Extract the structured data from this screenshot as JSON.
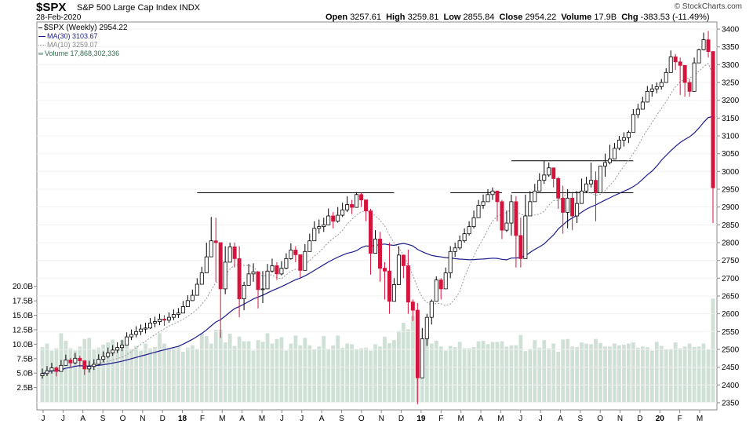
{
  "header": {
    "symbol": "$SPX",
    "name": "S&P 500 Large Cap Index",
    "exchange": "INDX",
    "date": "28-Feb-2020",
    "brand": "© StockCharts.com",
    "open_label": "Open",
    "open": "3257.61",
    "high_label": "High",
    "high": "3259.81",
    "low_label": "Low",
    "low": "2855.84",
    "close_label": "Close",
    "close": "2954.22",
    "volume_label": "Volume",
    "volume": "17.9B",
    "chg_label": "Chg",
    "chg": "-383.53 (-11.49%)"
  },
  "legend": {
    "price": "$SPX (Weekly) 2954.22",
    "ma30": "MA(30) 3103.67",
    "ma10": "MA(10) 3259.07",
    "volume": "Volume 17,868,302,336"
  },
  "colors": {
    "up": "#000000",
    "down": "#d4143c",
    "ma30": "#1c1c8c",
    "ma10": "#999999",
    "volume": "#cfe0d6"
  },
  "chart_data": {
    "type": "candlestick",
    "period": "weekly",
    "x_tick_labels": [
      "J",
      "J",
      "A",
      "S",
      "O",
      "N",
      "D",
      "18",
      "F",
      "M",
      "A",
      "M",
      "J",
      "J",
      "A",
      "S",
      "O",
      "N",
      "D",
      "19",
      "F",
      "M",
      "A",
      "M",
      "J",
      "J",
      "A",
      "S",
      "O",
      "N",
      "D",
      "20",
      "F",
      "M"
    ],
    "y_price_range": [
      2330,
      3420
    ],
    "y_price_ticks": [
      2350,
      2400,
      2450,
      2500,
      2550,
      2600,
      2650,
      2700,
      2750,
      2800,
      2850,
      2900,
      2950,
      3000,
      3050,
      3100,
      3150,
      3200,
      3250,
      3300,
      3350,
      3400
    ],
    "y_volume_range": [
      0,
      22
    ],
    "y_volume_ticks": [
      "2.5B",
      "5.0B",
      "7.5B",
      "10.0B",
      "12.5B",
      "15.0B",
      "17.5B",
      "20.0B"
    ],
    "y_volume_tick_values": [
      2.5,
      5,
      7.5,
      10,
      12.5,
      15,
      17.5,
      20
    ],
    "closes": [
      2432,
      2440,
      2448,
      2438,
      2455,
      2470,
      2462,
      2475,
      2468,
      2445,
      2452,
      2458,
      2472,
      2480,
      2490,
      2498,
      2505,
      2512,
      2535,
      2542,
      2550,
      2557,
      2560,
      2574,
      2578,
      2585,
      2582,
      2590,
      2598,
      2602,
      2620,
      2637,
      2652,
      2683,
      2715,
      2760,
      2805,
      2800,
      2670,
      2745,
      2788,
      2755,
      2642,
      2680,
      2712,
      2718,
      2668,
      2670,
      2720,
      2735,
      2712,
      2728,
      2755,
      2779,
      2766,
      2722,
      2775,
      2805,
      2840,
      2845,
      2850,
      2875,
      2860,
      2877,
      2892,
      2907,
      2899,
      2935,
      2920,
      2889,
      2770,
      2810,
      2728,
      2720,
      2635,
      2682,
      2765,
      2735,
      2633,
      2610,
      2420,
      2530,
      2590,
      2635,
      2695,
      2670,
      2715,
      2775,
      2785,
      2805,
      2825,
      2845,
      2870,
      2905,
      2915,
      2935,
      2945,
      2915,
      2835,
      2855,
      2915,
      2820,
      2755,
      2875,
      2915,
      2945,
      2975,
      2990,
      3010,
      2980,
      2925,
      2885,
      2925,
      2875,
      2910,
      2945,
      2965,
      2975,
      2940,
      3015,
      3025,
      3035,
      3065,
      3088,
      3095,
      3110,
      3160,
      3175,
      3195,
      3225,
      3232,
      3238,
      3250,
      3278,
      3322,
      3308,
      3298,
      3250,
      3225,
      3305,
      3342,
      3370,
      3337,
      2954
    ],
    "ranges": [
      [
        2418,
        2446
      ],
      [
        2425,
        2453
      ],
      [
        2432,
        2462
      ],
      [
        2424,
        2452
      ],
      [
        2440,
        2470
      ],
      [
        2455,
        2485
      ],
      [
        2448,
        2476
      ],
      [
        2458,
        2490
      ],
      [
        2450,
        2482
      ],
      [
        2428,
        2462
      ],
      [
        2435,
        2468
      ],
      [
        2442,
        2472
      ],
      [
        2456,
        2486
      ],
      [
        2464,
        2494
      ],
      [
        2475,
        2505
      ],
      [
        2482,
        2512
      ],
      [
        2490,
        2520
      ],
      [
        2495,
        2526
      ],
      [
        2515,
        2548
      ],
      [
        2526,
        2556
      ],
      [
        2534,
        2565
      ],
      [
        2540,
        2570
      ],
      [
        2545,
        2575
      ],
      [
        2557,
        2588
      ],
      [
        2562,
        2592
      ],
      [
        2568,
        2600
      ],
      [
        2566,
        2596
      ],
      [
        2575,
        2604
      ],
      [
        2582,
        2612
      ],
      [
        2588,
        2616
      ],
      [
        2604,
        2636
      ],
      [
        2620,
        2652
      ],
      [
        2636,
        2668
      ],
      [
        2660,
        2700
      ],
      [
        2694,
        2732
      ],
      [
        2738,
        2800
      ],
      [
        2785,
        2872
      ],
      [
        2690,
        2870
      ],
      [
        2532,
        2800
      ],
      [
        2655,
        2790
      ],
      [
        2760,
        2800
      ],
      [
        2730,
        2800
      ],
      [
        2590,
        2790
      ],
      [
        2610,
        2690
      ],
      [
        2690,
        2740
      ],
      [
        2690,
        2742
      ],
      [
        2615,
        2710
      ],
      [
        2630,
        2720
      ],
      [
        2698,
        2740
      ],
      [
        2716,
        2755
      ],
      [
        2695,
        2745
      ],
      [
        2708,
        2748
      ],
      [
        2725,
        2770
      ],
      [
        2752,
        2798
      ],
      [
        2745,
        2790
      ],
      [
        2702,
        2758
      ],
      [
        2748,
        2796
      ],
      [
        2780,
        2825
      ],
      [
        2812,
        2860
      ],
      [
        2825,
        2865
      ],
      [
        2830,
        2870
      ],
      [
        2850,
        2896
      ],
      [
        2840,
        2886
      ],
      [
        2856,
        2900
      ],
      [
        2872,
        2912
      ],
      [
        2886,
        2930
      ],
      [
        2880,
        2920
      ],
      [
        2912,
        2942
      ],
      [
        2900,
        2940
      ],
      [
        2860,
        2920
      ],
      [
        2710,
        2895
      ],
      [
        2770,
        2835
      ],
      [
        2690,
        2830
      ],
      [
        2640,
        2745
      ],
      [
        2600,
        2800
      ],
      [
        2640,
        2700
      ],
      [
        2730,
        2790
      ],
      [
        2700,
        2760
      ],
      [
        2600,
        2780
      ],
      [
        2580,
        2640
      ],
      [
        2346,
        2630
      ],
      [
        2420,
        2560
      ],
      [
        2510,
        2600
      ],
      [
        2570,
        2640
      ],
      [
        2640,
        2705
      ],
      [
        2640,
        2700
      ],
      [
        2670,
        2730
      ],
      [
        2700,
        2790
      ],
      [
        2760,
        2800
      ],
      [
        2780,
        2820
      ],
      [
        2800,
        2840
      ],
      [
        2820,
        2860
      ],
      [
        2840,
        2890
      ],
      [
        2880,
        2920
      ],
      [
        2895,
        2935
      ],
      [
        2915,
        2950
      ],
      [
        2920,
        2955
      ],
      [
        2860,
        2935
      ],
      [
        2810,
        2920
      ],
      [
        2830,
        2890
      ],
      [
        2820,
        2935
      ],
      [
        2730,
        2930
      ],
      [
        2730,
        2870
      ],
      [
        2860,
        2935
      ],
      [
        2880,
        2945
      ],
      [
        2920,
        2965
      ],
      [
        2955,
        2995
      ],
      [
        2965,
        3030
      ],
      [
        2985,
        3025
      ],
      [
        2955,
        3010
      ],
      [
        2895,
        2985
      ],
      [
        2825,
        2960
      ],
      [
        2840,
        2950
      ],
      [
        2835,
        2940
      ],
      [
        2855,
        2945
      ],
      [
        2920,
        2980
      ],
      [
        2940,
        2985
      ],
      [
        2955,
        3025
      ],
      [
        2860,
        3000
      ],
      [
        2975,
        3015
      ],
      [
        2985,
        3050
      ],
      [
        3020,
        3075
      ],
      [
        3040,
        3080
      ],
      [
        3060,
        3100
      ],
      [
        3070,
        3110
      ],
      [
        3080,
        3115
      ],
      [
        3140,
        3175
      ],
      [
        3150,
        3190
      ],
      [
        3180,
        3210
      ],
      [
        3200,
        3240
      ],
      [
        3210,
        3245
      ],
      [
        3220,
        3250
      ],
      [
        3230,
        3260
      ],
      [
        3260,
        3290
      ],
      [
        3290,
        3340
      ],
      [
        3285,
        3330
      ],
      [
        3215,
        3320
      ],
      [
        3210,
        3290
      ],
      [
        3210,
        3260
      ],
      [
        3270,
        3320
      ],
      [
        3310,
        3345
      ],
      [
        3340,
        3390
      ],
      [
        3320,
        3395
      ],
      [
        2855,
        3260
      ]
    ],
    "volumes": [
      9.5,
      10.1,
      8.9,
      9.3,
      11.9,
      10.6,
      9.3,
      8.9,
      9.6,
      10.9,
      11.1,
      9.1,
      9.4,
      9.9,
      10.3,
      10.8,
      9.5,
      10.8,
      10.1,
      9.2,
      9.7,
      8.9,
      10.1,
      9.3,
      9.5,
      11.9,
      10.1,
      9.4,
      9.5,
      9.6,
      8.7,
      9.4,
      9.8,
      9.2,
      11.9,
      11.4,
      10.1,
      12.5,
      12.5,
      10.3,
      11.8,
      9.7,
      11.3,
      10.5,
      10.5,
      8.9,
      10.7,
      10.4,
      11.9,
      10.1,
      10.9,
      11.2,
      8.9,
      10.1,
      11.5,
      9.8,
      11.1,
      9.8,
      9.1,
      9.6,
      11.4,
      9.2,
      9.8,
      11.5,
      9.4,
      10.1,
      10.0,
      9.2,
      9.3,
      9.4,
      8.9,
      10.0,
      9.6,
      11.3,
      10.2,
      10.7,
      12.3,
      13.7,
      12.6,
      14.9,
      13.8,
      10.2,
      11.4,
      10.1,
      10.6,
      9.6,
      8.9,
      9.7,
      9.5,
      10.4,
      9.3,
      9.3,
      9.5,
      10.5,
      10.6,
      10.0,
      10.4,
      10.4,
      10.5,
      9.6,
      9.8,
      9.8,
      11.6,
      8.8,
      9.2,
      10.7,
      9.4,
      10.7,
      9.3,
      10.1,
      8.7,
      10.8,
      10.9,
      9.6,
      9.5,
      10.3,
      10.1,
      10.0,
      10.9,
      10.2,
      9.6,
      9.6,
      10.1,
      9.8,
      9.9,
      10.1,
      10.3,
      9.4,
      9.6,
      9.5,
      8.9,
      10.4,
      9.7,
      9.1,
      9.2,
      10.3,
      9.3,
      9.6,
      10.1,
      9.5,
      9.6,
      10.1,
      9.1,
      17.9
    ],
    "moving_averages": [
      {
        "name": "MA(30)",
        "period": 30
      },
      {
        "name": "MA(10)",
        "period": 10
      }
    ],
    "horizontal_lines": [
      {
        "y": 2940,
        "from_week": 33,
        "to_week": 75
      },
      {
        "y": 2940,
        "from_week": 87,
        "to_week": 98
      },
      {
        "y": 2940,
        "from_week": 100,
        "to_week": 126
      },
      {
        "y": 3030,
        "from_week": 100,
        "to_week": 126
      }
    ]
  }
}
